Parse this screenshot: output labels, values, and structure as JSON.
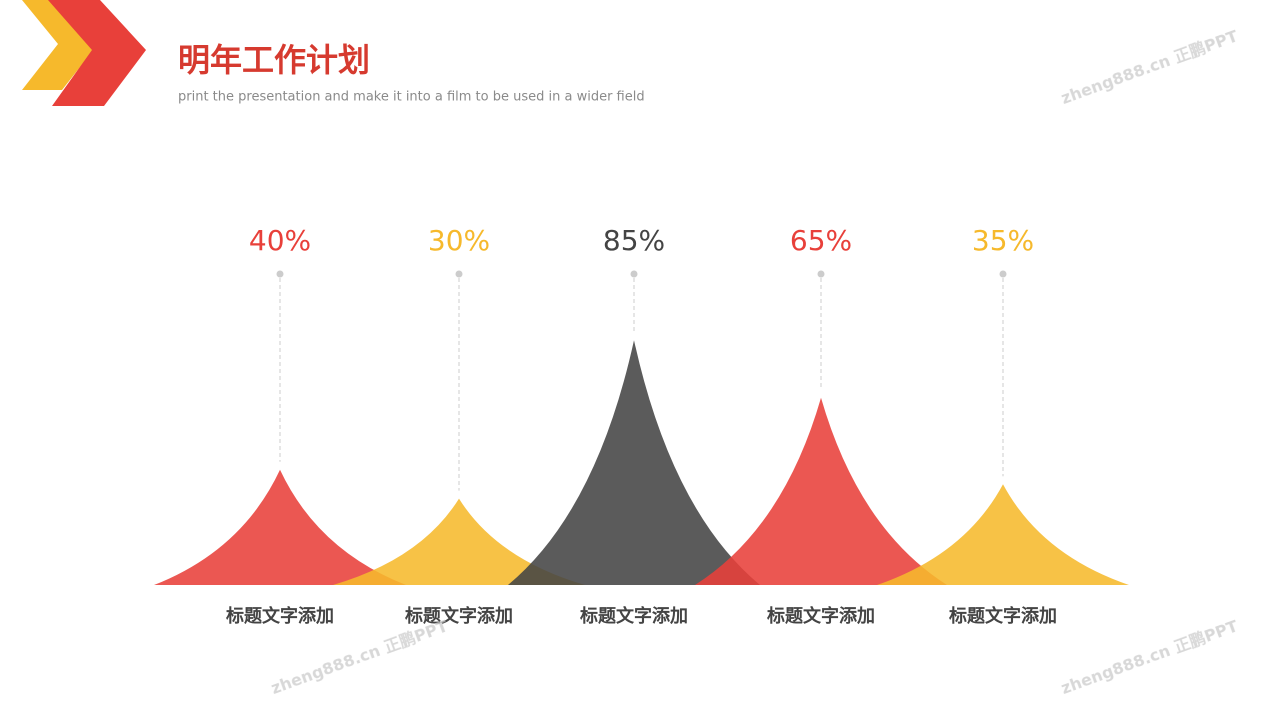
{
  "header": {
    "title": "明年工作计划",
    "subtitle": "print the presentation and make it into a film to be used in a wider field"
  },
  "watermark": "zheng888.cn 正鹏PPT",
  "chart_data": {
    "type": "peak",
    "categories": [
      "标题文字添加",
      "标题文字添加",
      "标题文字添加",
      "标题文字添加",
      "标题文字添加"
    ],
    "values": [
      40,
      30,
      85,
      65,
      35
    ],
    "value_labels": [
      "40%",
      "30%",
      "85%",
      "65%",
      "35%"
    ],
    "colors": [
      "#e8403a",
      "#f6b92c",
      "#444444",
      "#e8403a",
      "#f6b92c"
    ]
  }
}
